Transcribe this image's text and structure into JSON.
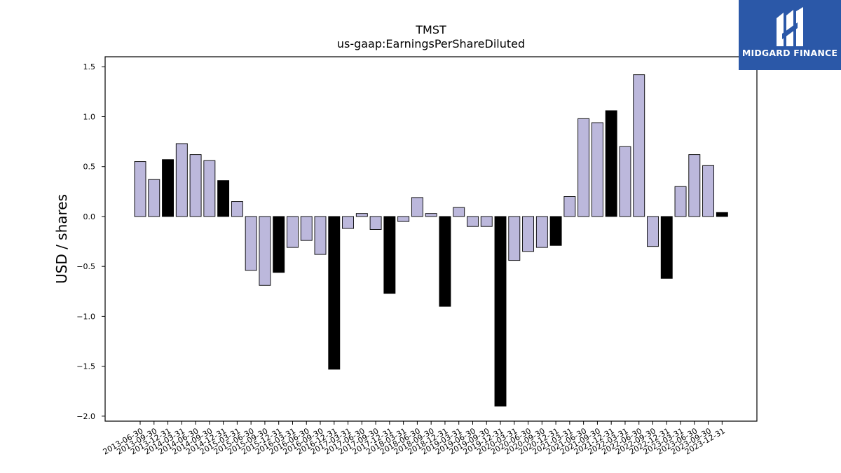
{
  "logo": {
    "text": "MIDGARD FINANCE",
    "icon": "midgard-logo-icon",
    "background": "#2b58a8"
  },
  "chart_data": {
    "type": "bar",
    "title": "TMST",
    "subtitle": "us-gaap:EarningsPerShareDiluted",
    "xlabel": "",
    "ylabel": "USD / shares",
    "ylim": [
      -2.05,
      1.6
    ],
    "yticks": [
      1.5,
      1.0,
      0.5,
      0.0,
      -0.5,
      -1.0,
      -1.5,
      -2.0
    ],
    "ytick_labels": [
      "1.5",
      "1.0",
      "0.5",
      "0.0",
      "−0.5",
      "−1.0",
      "−1.5",
      "−2.0"
    ],
    "grid": false,
    "colors": {
      "quarter": "#bcb8dc",
      "year_end": "#000000",
      "edge": "#000000"
    },
    "categories": [
      "2013-06-30",
      "2013-09-30",
      "2013-12-31",
      "2014-03-31",
      "2014-06-30",
      "2014-09-30",
      "2014-12-31",
      "2015-03-31",
      "2015-06-30",
      "2015-09-30",
      "2015-12-31",
      "2016-03-31",
      "2016-06-30",
      "2016-09-30",
      "2016-12-31",
      "2017-03-31",
      "2017-06-30",
      "2017-09-30",
      "2017-12-31",
      "2018-03-31",
      "2018-06-30",
      "2018-09-30",
      "2018-12-31",
      "2019-03-31",
      "2019-06-30",
      "2019-09-30",
      "2019-12-31",
      "2020-03-31",
      "2020-06-30",
      "2020-09-30",
      "2020-12-31",
      "2021-03-31",
      "2021-06-30",
      "2021-09-30",
      "2021-12-31",
      "2022-03-31",
      "2022-06-30",
      "2022-09-30",
      "2022-12-31",
      "2023-03-31",
      "2023-06-30",
      "2023-09-30",
      "2023-12-31"
    ],
    "values": [
      0.55,
      0.37,
      0.57,
      0.73,
      0.62,
      0.56,
      0.36,
      0.15,
      -0.54,
      -0.69,
      -0.56,
      -0.31,
      -0.24,
      -0.38,
      -1.53,
      -0.12,
      0.03,
      -0.13,
      -0.77,
      -0.05,
      0.19,
      0.03,
      -0.9,
      0.09,
      -0.1,
      -0.1,
      -1.9,
      -0.44,
      -0.35,
      -0.31,
      -0.29,
      0.2,
      0.98,
      0.94,
      1.06,
      0.7,
      1.42,
      -0.3,
      -0.62,
      0.3,
      0.62,
      0.51,
      0.04
    ],
    "highlight": [
      false,
      false,
      true,
      false,
      false,
      false,
      true,
      false,
      false,
      false,
      true,
      false,
      false,
      false,
      true,
      false,
      false,
      false,
      true,
      false,
      false,
      false,
      true,
      false,
      false,
      false,
      true,
      false,
      false,
      false,
      true,
      false,
      false,
      false,
      true,
      false,
      false,
      false,
      true,
      false,
      false,
      false,
      true
    ]
  }
}
